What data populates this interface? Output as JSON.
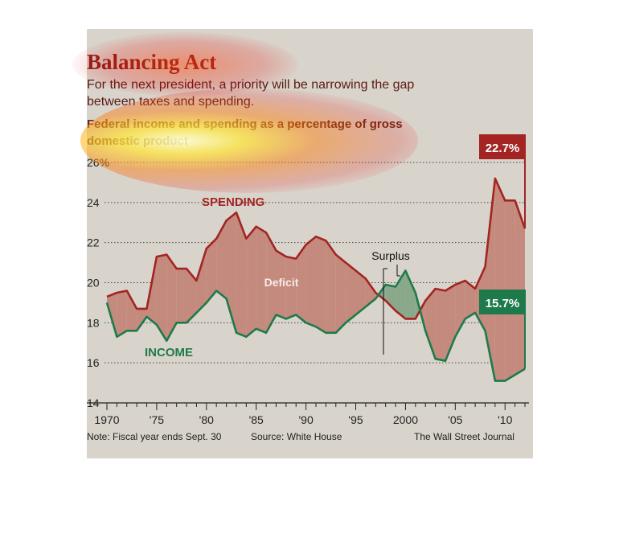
{
  "title": "Balancing Act",
  "subtitle": "For the next president, a priority will be narrowing the gap between taxes and spending.",
  "description": "Federal income and spending as a percentage of gross domestic product",
  "footer": {
    "note": "Note: Fiscal year ends Sept. 30",
    "source": "Source: White House",
    "credit": "The Wall Street Journal"
  },
  "colors": {
    "spending": "#a32423",
    "income": "#1e7a4a",
    "deficit_fill": "#c48a7d",
    "surplus_fill": "#8aa88a",
    "background": "#d9d4cb",
    "title": "#8e1f1a"
  },
  "chart_data": {
    "type": "line",
    "ylim": [
      14,
      26
    ],
    "yticks": [
      "26%",
      "24",
      "22",
      "20",
      "18",
      "16",
      "14"
    ],
    "ytick_values": [
      26,
      24,
      22,
      20,
      18,
      16,
      14
    ],
    "xlim": [
      1970,
      2012
    ],
    "xticks": [
      "1970",
      "'75",
      "'80",
      "'85",
      "'90",
      "'95",
      "2000",
      "'05",
      "'10"
    ],
    "xtick_values": [
      1970,
      1975,
      1980,
      1985,
      1990,
      1995,
      2000,
      2005,
      2010
    ],
    "x": [
      1970,
      1971,
      1972,
      1973,
      1974,
      1975,
      1976,
      1977,
      1978,
      1979,
      1980,
      1981,
      1982,
      1983,
      1984,
      1985,
      1986,
      1987,
      1988,
      1989,
      1990,
      1991,
      1992,
      1993,
      1994,
      1995,
      1996,
      1997,
      1998,
      1999,
      2000,
      2001,
      2002,
      2003,
      2004,
      2005,
      2006,
      2007,
      2008,
      2009,
      2010,
      2011,
      2012
    ],
    "series": [
      {
        "name": "SPENDING",
        "values": [
          19.3,
          19.5,
          19.6,
          18.7,
          18.7,
          21.3,
          21.4,
          20.7,
          20.7,
          20.1,
          21.7,
          22.2,
          23.1,
          23.5,
          22.2,
          22.8,
          22.5,
          21.6,
          21.3,
          21.2,
          21.9,
          22.3,
          22.1,
          21.4,
          21.0,
          20.6,
          20.2,
          19.5,
          19.1,
          18.6,
          18.2,
          18.2,
          19.1,
          19.7,
          19.6,
          19.9,
          20.1,
          19.7,
          20.8,
          25.2,
          24.1,
          24.1,
          22.7
        ]
      },
      {
        "name": "INCOME",
        "values": [
          19.0,
          17.3,
          17.6,
          17.6,
          18.3,
          17.9,
          17.1,
          18.0,
          18.0,
          18.5,
          19.0,
          19.6,
          19.2,
          17.5,
          17.3,
          17.7,
          17.5,
          18.4,
          18.2,
          18.4,
          18.0,
          17.8,
          17.5,
          17.5,
          18.0,
          18.4,
          18.8,
          19.2,
          19.9,
          19.8,
          20.6,
          19.5,
          17.6,
          16.2,
          16.1,
          17.3,
          18.2,
          18.5,
          17.6,
          15.1,
          15.1,
          15.4,
          15.7
        ]
      }
    ],
    "labels": {
      "spending": "SPENDING",
      "income": "INCOME",
      "deficit": "Deficit",
      "surplus": "Surplus",
      "spending_end": "22.7%",
      "income_end": "15.7%"
    },
    "grid": "dotted horizontal"
  }
}
